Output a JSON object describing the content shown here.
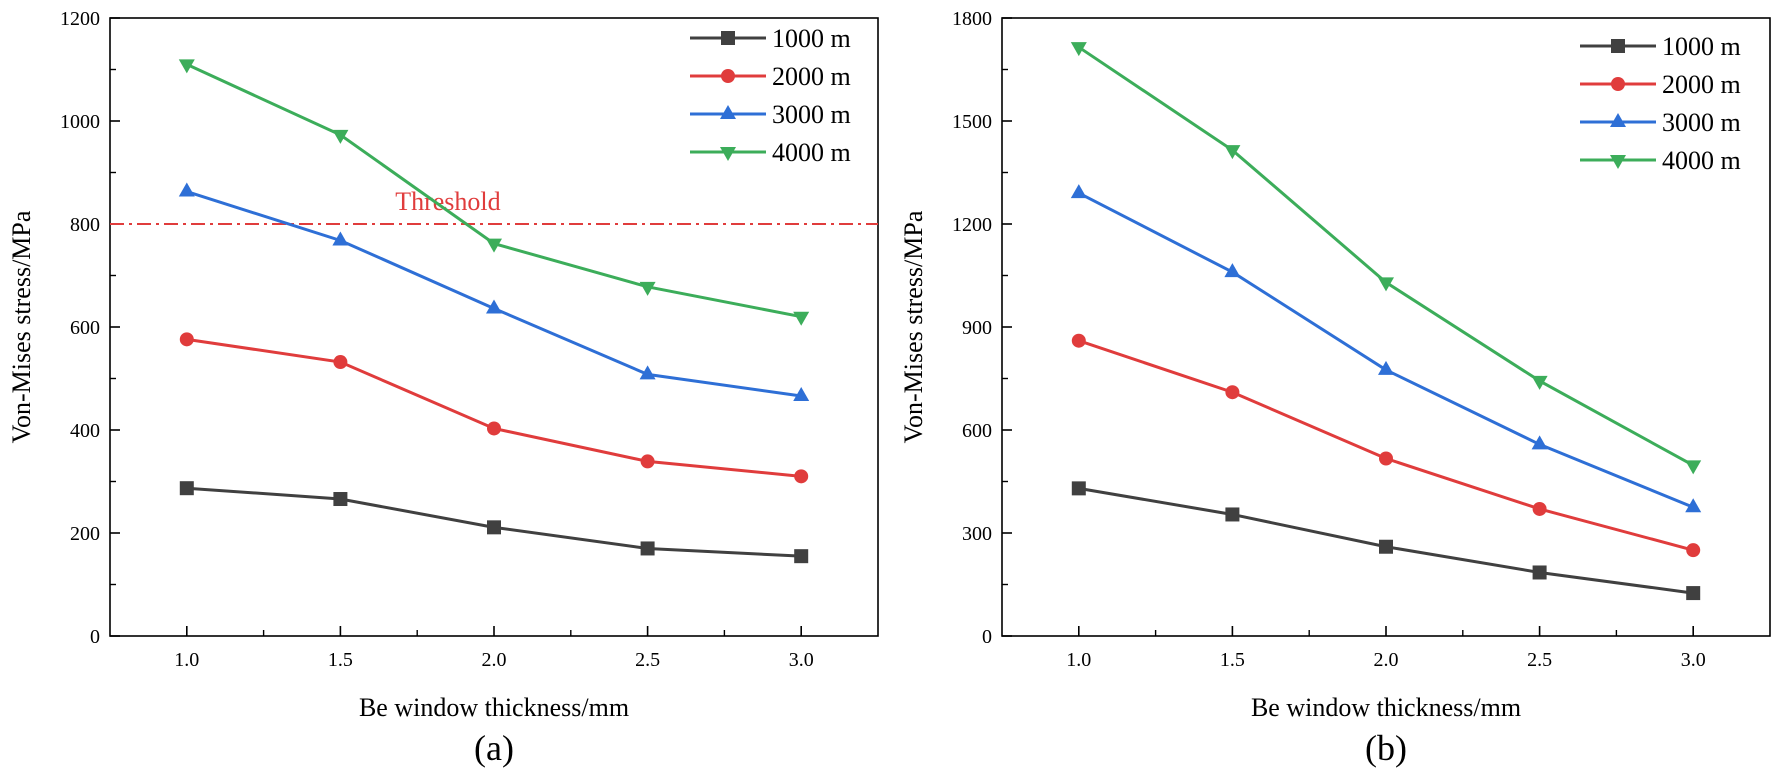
{
  "chart_data": [
    {
      "type": "line",
      "panel_label": "(a)",
      "xlabel": "Be window thickness/mm",
      "ylabel": "Von-Mises stress/MPa",
      "x": [
        1.0,
        1.5,
        2.0,
        2.5,
        3.0
      ],
      "x_tick_labels": [
        "1.0",
        "1.5",
        "2.0",
        "2.5",
        "3.0"
      ],
      "xlim": [
        0.75,
        3.25
      ],
      "ylim": [
        0,
        1200
      ],
      "y_ticks": [
        0,
        200,
        400,
        600,
        800,
        1000,
        1200
      ],
      "y_tick_labels": [
        "0",
        "200",
        "400",
        "600",
        "800",
        "1000",
        "1200"
      ],
      "legend_position": "top-right",
      "series": [
        {
          "name": "1000 m",
          "color": "#404040",
          "marker": "square",
          "values": [
            287,
            266,
            211,
            170,
            155
          ]
        },
        {
          "name": "2000 m",
          "color": "#e03c3c",
          "marker": "circle",
          "values": [
            576,
            532,
            403,
            339,
            310
          ]
        },
        {
          "name": "3000 m",
          "color": "#2e6fd6",
          "marker": "triangle-up",
          "values": [
            863,
            768,
            636,
            508,
            466
          ]
        },
        {
          "name": "4000 m",
          "color": "#3cad5a",
          "marker": "triangle-down",
          "values": [
            1110,
            973,
            762,
            678,
            620
          ]
        }
      ],
      "threshold": {
        "label": "Threshold",
        "value": 800,
        "color": "#e03c3c"
      }
    },
    {
      "type": "line",
      "panel_label": "(b)",
      "xlabel": "Be window thickness/mm",
      "ylabel": "Von-Mises stress/MPa",
      "x": [
        1.0,
        1.5,
        2.0,
        2.5,
        3.0
      ],
      "x_tick_labels": [
        "1.0",
        "1.5",
        "2.0",
        "2.5",
        "3.0"
      ],
      "xlim": [
        0.75,
        3.25
      ],
      "ylim": [
        0,
        1800
      ],
      "y_ticks": [
        0,
        300,
        600,
        900,
        1200,
        1500,
        1800
      ],
      "y_tick_labels": [
        "0",
        "300",
        "600",
        "900",
        "1200",
        "1500",
        "1800"
      ],
      "legend_position": "top-right",
      "series": [
        {
          "name": "1000 m",
          "color": "#404040",
          "marker": "square",
          "values": [
            430,
            354,
            260,
            185,
            125
          ]
        },
        {
          "name": "2000 m",
          "color": "#e03c3c",
          "marker": "circle",
          "values": [
            860,
            710,
            517,
            370,
            250
          ]
        },
        {
          "name": "3000 m",
          "color": "#2e6fd6",
          "marker": "triangle-up",
          "values": [
            1290,
            1060,
            775,
            558,
            375
          ]
        },
        {
          "name": "4000 m",
          "color": "#3cad5a",
          "marker": "triangle-down",
          "values": [
            1715,
            1415,
            1030,
            743,
            497
          ]
        }
      ]
    }
  ]
}
